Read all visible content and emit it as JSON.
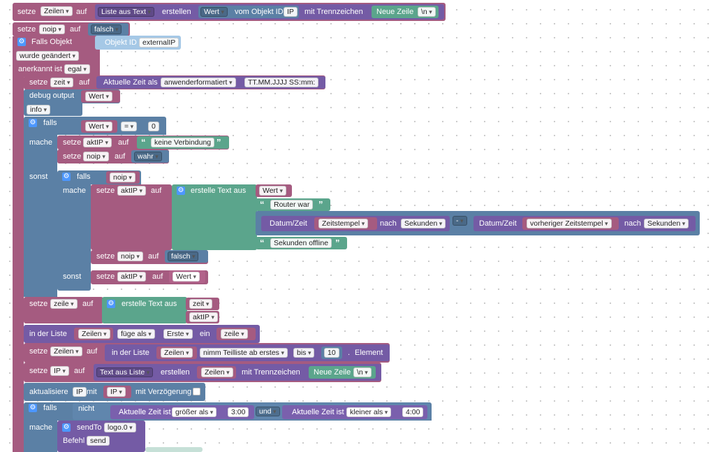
{
  "colors": {
    "variables": "#a55b80",
    "text": "#745ba5",
    "logic": "#5b80a5",
    "strings": "#5ba58c",
    "objects": "#a5c8e6"
  },
  "b1": {
    "setze": "setze",
    "var": "Zeilen",
    "auf": "auf",
    "fn": "Liste aus Text",
    "erstellen": "erstellen",
    "wert": "Wert",
    "vom": "vom Objekt ID",
    "id": "IP",
    "mit": "mit Trennzeichen",
    "nl": "Neue Zeile",
    "nlv": "\\n"
  },
  "b2": {
    "setze": "setze",
    "var": "noip",
    "auf": "auf",
    "val": "falsch"
  },
  "trigger": {
    "falls_objekt": "Falls Objekt",
    "objid_label": "Objekt ID",
    "objid": "externalIP",
    "changed": "wurde geändert",
    "ack_label": "anerkannt ist",
    "ack": "egal"
  },
  "zeit": {
    "setze": "setze",
    "var": "zeit",
    "auf": "auf",
    "fn": "Aktuelle Zeit als",
    "fmt": "anwenderformatiert",
    "pattern": "TT.MM.JJJJ SS:mm:"
  },
  "debug": {
    "label": "debug output",
    "val": "Wert",
    "level": "info"
  },
  "if1": {
    "falls": "falls",
    "wert": "Wert",
    "op": "=",
    "num": "0",
    "mache": "mache",
    "sonst": "sonst"
  },
  "s1": {
    "setze": "setze",
    "var": "aktIP",
    "auf": "auf",
    "text": "keine Verbindung"
  },
  "s2": {
    "setze": "setze",
    "var": "noip",
    "auf": "auf",
    "val": "wahr"
  },
  "if2": {
    "falls": "falls",
    "var": "noip",
    "mache": "mache",
    "sonst": "sonst"
  },
  "s3": {
    "setze": "setze",
    "var": "aktIP",
    "auf": "auf",
    "fn": "erstelle Text aus",
    "wert": "Wert",
    "router": "Router war",
    "dt1": "Datum/Zeit",
    "ts1": "Zeitstempel",
    "nach1": "nach",
    "sek1": "Sekunden",
    "minus": "-",
    "dt2": "Datum/Zeit",
    "ts2": "vorheriger Zeitstempel",
    "nach2": "nach",
    "sek2": "Sekunden",
    "offline": "Sekunden offline"
  },
  "s4": {
    "setze": "setze",
    "var": "noip",
    "auf": "auf",
    "val": "falsch"
  },
  "s5": {
    "setze": "setze",
    "var": "aktIP",
    "auf": "auf",
    "val": "Wert"
  },
  "zeile": {
    "setze": "setze",
    "var": "zeile",
    "auf": "auf",
    "fn": "erstelle Text aus",
    "v1": "zeit",
    "v2": "aktIP"
  },
  "liste": {
    "label": "in der Liste",
    "list": "Zeilen",
    "op": "füge als",
    "pos": "Erste",
    "ein": "ein",
    "val": "zeile"
  },
  "teil": {
    "setze": "setze",
    "var": "Zeilen",
    "auf": "auf",
    "label": "in der Liste",
    "list": "Zeilen",
    "op": "nimm Teilliste ab erstes",
    "bis": "bis",
    "num": "10",
    "dot": ".",
    "el": "Element"
  },
  "ipset": {
    "setze": "setze",
    "var": "IP",
    "auf": "auf",
    "fn": "Text aus Liste",
    "erstellen": "erstellen",
    "list": "Zeilen",
    "mit": "mit Trennzeichen",
    "nl": "Neue Zeile",
    "nlv": "\\n"
  },
  "upd": {
    "label": "aktualisiere",
    "id": "IP",
    "mit": "mit",
    "val": "IP",
    "delay": "mit Verzögerung"
  },
  "if3": {
    "falls": "falls",
    "nicht": "nicht",
    "t1": "Aktuelle Zeit ist",
    "c1": "größer als",
    "v1": "3:00",
    "und": "und",
    "t2": "Aktuelle Zeit ist",
    "c2": "kleiner als",
    "v2": "4:00",
    "mache": "mache"
  },
  "send": {
    "label": "sendTo",
    "target": "logo.0",
    "befehl": "Befehl",
    "cmd": "send"
  }
}
